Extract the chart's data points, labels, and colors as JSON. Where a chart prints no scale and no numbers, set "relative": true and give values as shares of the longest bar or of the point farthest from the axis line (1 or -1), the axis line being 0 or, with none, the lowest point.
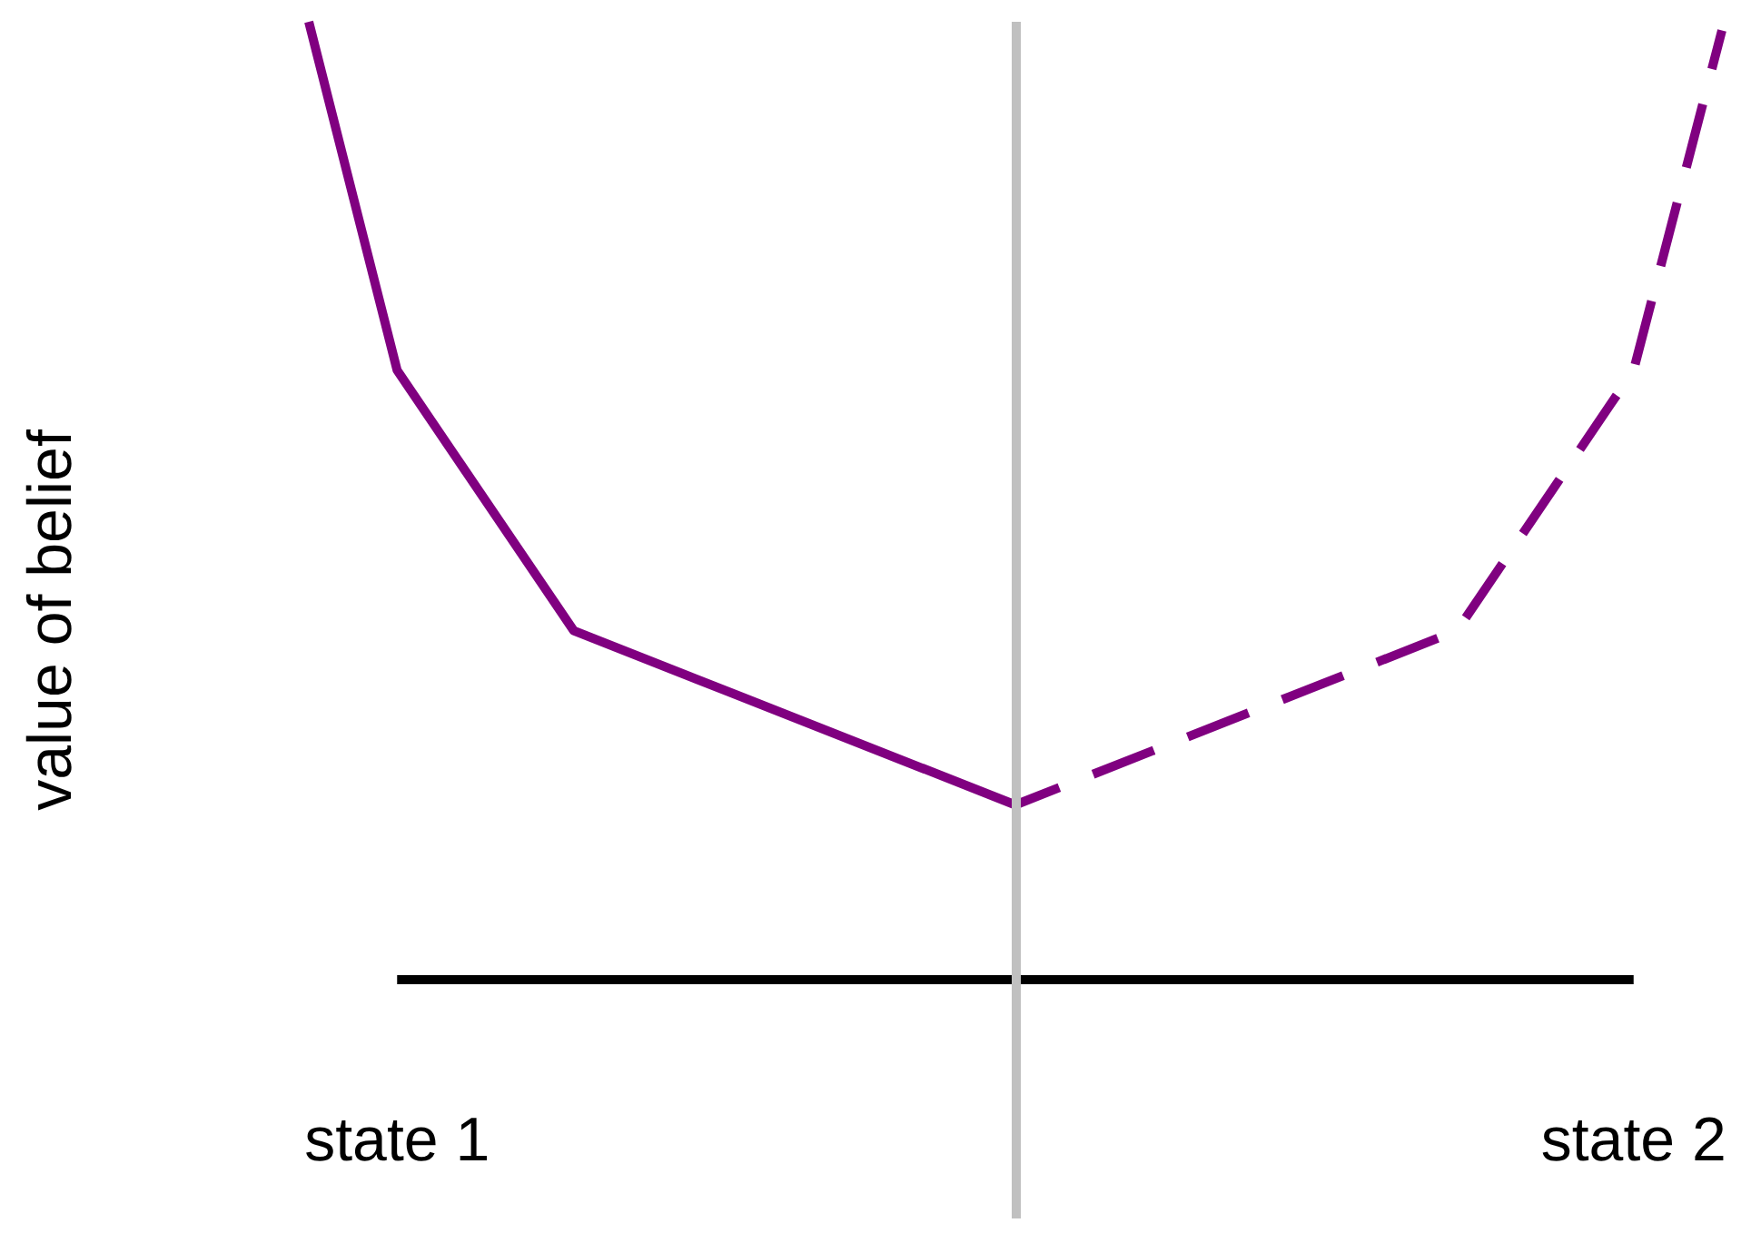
{
  "chart_data": {
    "type": "line",
    "relative": true,
    "ylabel": "value of belief",
    "categories": [
      null,
      "state 1",
      null,
      null,
      null,
      null,
      null,
      null,
      null,
      null,
      null,
      null,
      null,
      null,
      null,
      "state 2",
      null
    ],
    "series": [
      {
        "color": "#800080",
        "line_style": "solid",
        "values": [
          1,
          0.636,
          null,
          0.364,
          null,
          null,
          null,
          null,
          0.182,
          null,
          null,
          null,
          null,
          null,
          null,
          null,
          null
        ]
      },
      {
        "color": "#800080",
        "line_style": "dashed",
        "values": [
          null,
          null,
          null,
          null,
          null,
          null,
          null,
          null,
          0.182,
          null,
          null,
          null,
          null,
          0.364,
          null,
          0.636,
          0.991
        ]
      }
    ],
    "marker": "none"
  }
}
